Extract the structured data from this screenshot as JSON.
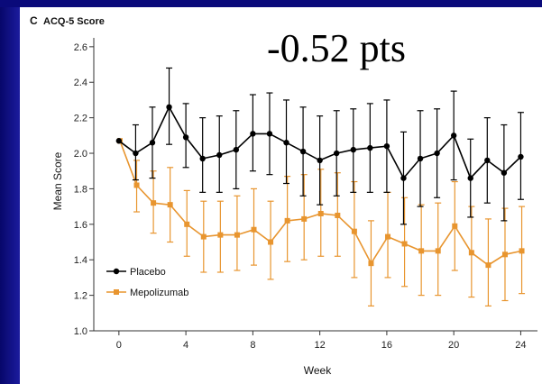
{
  "panel_letter": "C",
  "annotation": "-0.52 pts",
  "chart_data": {
    "type": "line",
    "title": "ACQ-5 Score",
    "xlabel": "Week",
    "ylabel": "Mean Score",
    "xlim": [
      -1.5,
      25
    ],
    "ylim": [
      1.0,
      2.65
    ],
    "xticks": [
      0,
      4,
      8,
      12,
      16,
      20,
      24
    ],
    "yticks": [
      1.0,
      1.2,
      1.4,
      1.6,
      1.8,
      2.0,
      2.2,
      2.4,
      2.6
    ],
    "ytick_labels": [
      "1.0",
      "1.2",
      "1.4",
      "1.6",
      "1.8",
      "2.0",
      "2.2",
      "2.4",
      "2.6"
    ],
    "legend_position": "lower-left",
    "series": [
      {
        "name": "Placebo",
        "color": "#000000",
        "marker": "circle",
        "x": [
          0,
          1,
          2,
          3,
          4,
          5,
          6,
          7,
          8,
          9,
          10,
          11,
          12,
          13,
          14,
          15,
          16,
          17,
          18,
          19,
          20,
          21,
          22,
          23,
          24
        ],
        "y": [
          2.07,
          2.0,
          2.06,
          2.26,
          2.09,
          1.97,
          1.99,
          2.02,
          2.11,
          2.11,
          2.06,
          2.01,
          1.96,
          2.0,
          2.02,
          2.03,
          2.04,
          1.86,
          1.97,
          2.0,
          2.1,
          1.86,
          1.96,
          1.89,
          1.98
        ],
        "upper": [
          2.07,
          2.16,
          2.26,
          2.48,
          2.28,
          2.2,
          2.21,
          2.24,
          2.33,
          2.34,
          2.3,
          2.26,
          2.21,
          2.24,
          2.25,
          2.28,
          2.3,
          2.12,
          2.24,
          2.25,
          2.35,
          2.08,
          2.2,
          2.16,
          2.23
        ],
        "lower": [
          2.07,
          1.85,
          1.86,
          2.05,
          1.92,
          1.78,
          1.78,
          1.8,
          1.9,
          1.88,
          1.83,
          1.76,
          1.71,
          1.76,
          1.78,
          1.78,
          1.78,
          1.6,
          1.7,
          1.75,
          1.85,
          1.64,
          1.72,
          1.62,
          1.74
        ]
      },
      {
        "name": "Mepolizumab",
        "color": "#e8952f",
        "marker": "square",
        "x": [
          0,
          1,
          2,
          3,
          4,
          5,
          6,
          7,
          8,
          9,
          10,
          11,
          12,
          13,
          14,
          15,
          16,
          17,
          18,
          19,
          20,
          21,
          22,
          23,
          24
        ],
        "y": [
          2.07,
          1.82,
          1.72,
          1.71,
          1.6,
          1.53,
          1.54,
          1.54,
          1.57,
          1.5,
          1.62,
          1.63,
          1.66,
          1.65,
          1.56,
          1.38,
          1.53,
          1.49,
          1.45,
          1.45,
          1.59,
          1.44,
          1.37,
          1.43,
          1.45
        ],
        "upper": [
          2.07,
          1.96,
          1.9,
          1.92,
          1.79,
          1.73,
          1.73,
          1.76,
          1.8,
          1.73,
          1.87,
          1.88,
          1.91,
          1.89,
          1.84,
          1.62,
          1.78,
          1.75,
          1.71,
          1.72,
          1.84,
          1.7,
          1.63,
          1.69,
          1.7
        ],
        "lower": [
          2.07,
          1.67,
          1.55,
          1.5,
          1.42,
          1.33,
          1.33,
          1.34,
          1.37,
          1.29,
          1.39,
          1.4,
          1.42,
          1.42,
          1.3,
          1.14,
          1.3,
          1.25,
          1.2,
          1.2,
          1.34,
          1.19,
          1.14,
          1.17,
          1.21
        ]
      }
    ]
  }
}
